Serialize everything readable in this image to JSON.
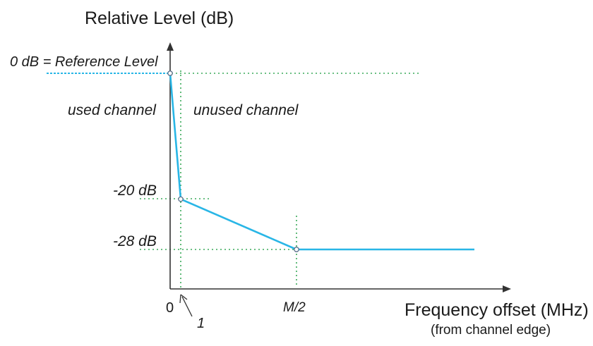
{
  "diagram": {
    "y_axis_title": "Relative Level (dB)",
    "x_axis_title": "Frequency offset (MHz)",
    "x_axis_subtitle": "(from channel edge)",
    "reference_label": "0 dB = Reference Level",
    "used_label": "used channel",
    "unused_label": "unused channel",
    "level_labels": [
      "-20 dB",
      "-28 dB"
    ],
    "x_tick_zero": "0",
    "x_tick_one": "1",
    "x_tick_half": "M/2",
    "colors": {
      "mask_line": "#29b6e6",
      "guide_dotted": "#3aaa5a",
      "axis": "#333333"
    }
  },
  "chart_data": {
    "type": "line",
    "title": "",
    "xlabel": "Frequency offset (MHz)",
    "ylabel": "Relative Level (dB)",
    "series": [
      {
        "points": [
          {
            "x": "0",
            "y": 0
          },
          {
            "x": "1",
            "y": -20
          },
          {
            "x": "M/2",
            "y": -28
          }
        ]
      }
    ],
    "note_after_last_point": "flat at -28 dB",
    "grid": false
  }
}
